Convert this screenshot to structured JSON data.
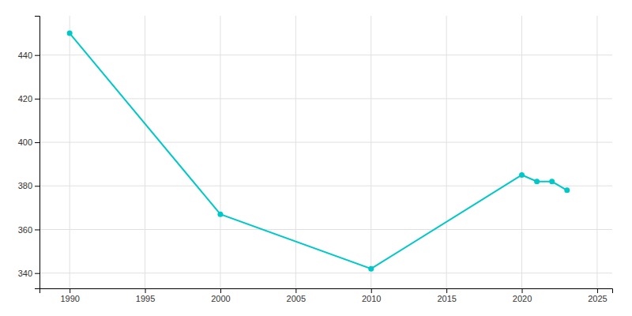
{
  "chart_data": {
    "type": "line",
    "x": [
      1990,
      2000,
      2010,
      2020,
      2021,
      2022,
      2023
    ],
    "values": [
      450,
      367,
      342,
      385,
      382,
      382,
      378
    ],
    "color": "#00c8c8",
    "marker": "circle",
    "xlim": [
      1988,
      2026
    ],
    "ylim": [
      333,
      458
    ],
    "xticks": [
      1990,
      1995,
      2000,
      2005,
      2010,
      2015,
      2020,
      2025
    ],
    "yticks": [
      340,
      360,
      380,
      400,
      420,
      440
    ],
    "grid": true
  }
}
